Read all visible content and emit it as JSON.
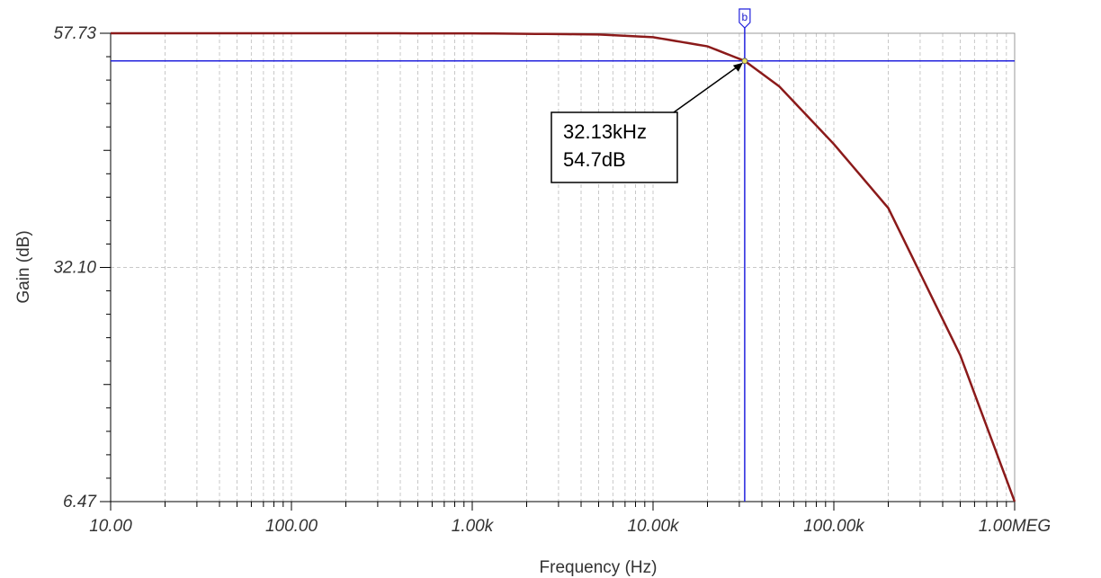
{
  "chart_data": {
    "type": "line",
    "xlabel": "Frequency (Hz)",
    "ylabel": "Gain (dB)",
    "x_scale": "log",
    "xlim": [
      10,
      1000000
    ],
    "ylim": [
      6.47,
      57.73
    ],
    "x_ticks": [
      {
        "value": 10,
        "label": "10.00"
      },
      {
        "value": 100,
        "label": "100.00"
      },
      {
        "value": 1000,
        "label": "1.00k"
      },
      {
        "value": 10000,
        "label": "10.00k"
      },
      {
        "value": 100000,
        "label": "100.00k"
      },
      {
        "value": 1000000,
        "label": "1.00MEG"
      }
    ],
    "y_ticks": [
      {
        "value": 57.73,
        "label": "57.73"
      },
      {
        "value": 32.1,
        "label": "32.10"
      },
      {
        "value": 6.47,
        "label": "6.47"
      }
    ],
    "grid": true,
    "series": [
      {
        "color": "#8b1a1a",
        "x": [
          10,
          100,
          1000,
          5000,
          10000,
          20000,
          32130,
          50000,
          100000,
          200000,
          500000,
          1000000
        ],
        "y": [
          57.73,
          57.73,
          57.72,
          57.6,
          57.3,
          56.3,
          54.7,
          51.9,
          45.6,
          38.6,
          22.5,
          6.47
        ]
      }
    ],
    "cursor": {
      "label": "b",
      "x": 32130,
      "y": 54.7,
      "color": "#2222dd"
    },
    "annotation": {
      "lines": [
        "32.13kHz",
        "54.7dB"
      ]
    }
  }
}
